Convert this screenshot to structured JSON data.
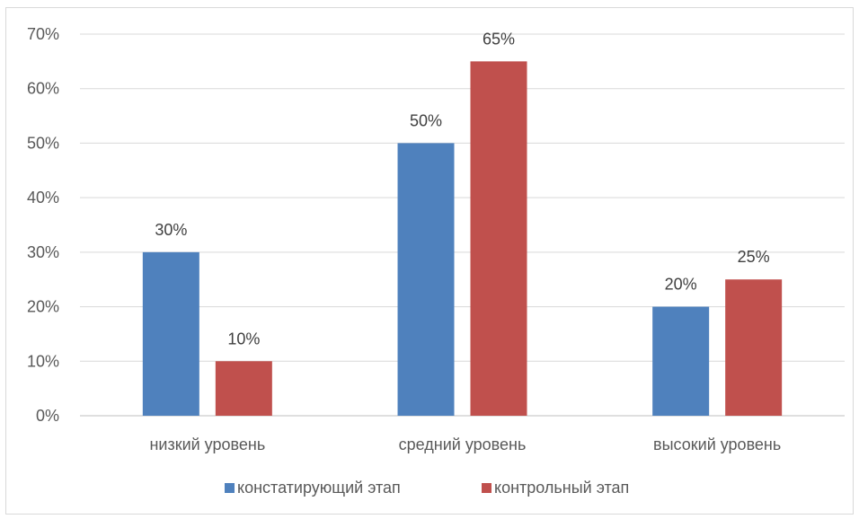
{
  "chart_data": {
    "type": "bar",
    "categories": [
      "низкий уровень",
      "средний уровень",
      "высокий уровень"
    ],
    "series": [
      {
        "name": "констатирующий этап",
        "values": [
          30,
          50,
          20
        ],
        "color": "#4f81bd"
      },
      {
        "name": "контрольный этап",
        "values": [
          10,
          65,
          25
        ],
        "color": "#c0504d"
      }
    ],
    "data_labels": [
      [
        "30%",
        "50%",
        "20%"
      ],
      [
        "10%",
        "65%",
        "25%"
      ]
    ],
    "y_ticks": [
      "0%",
      "10%",
      "20%",
      "30%",
      "40%",
      "50%",
      "60%",
      "70%"
    ],
    "ylim": [
      0,
      70
    ],
    "grid": true,
    "legend_position": "bottom"
  }
}
